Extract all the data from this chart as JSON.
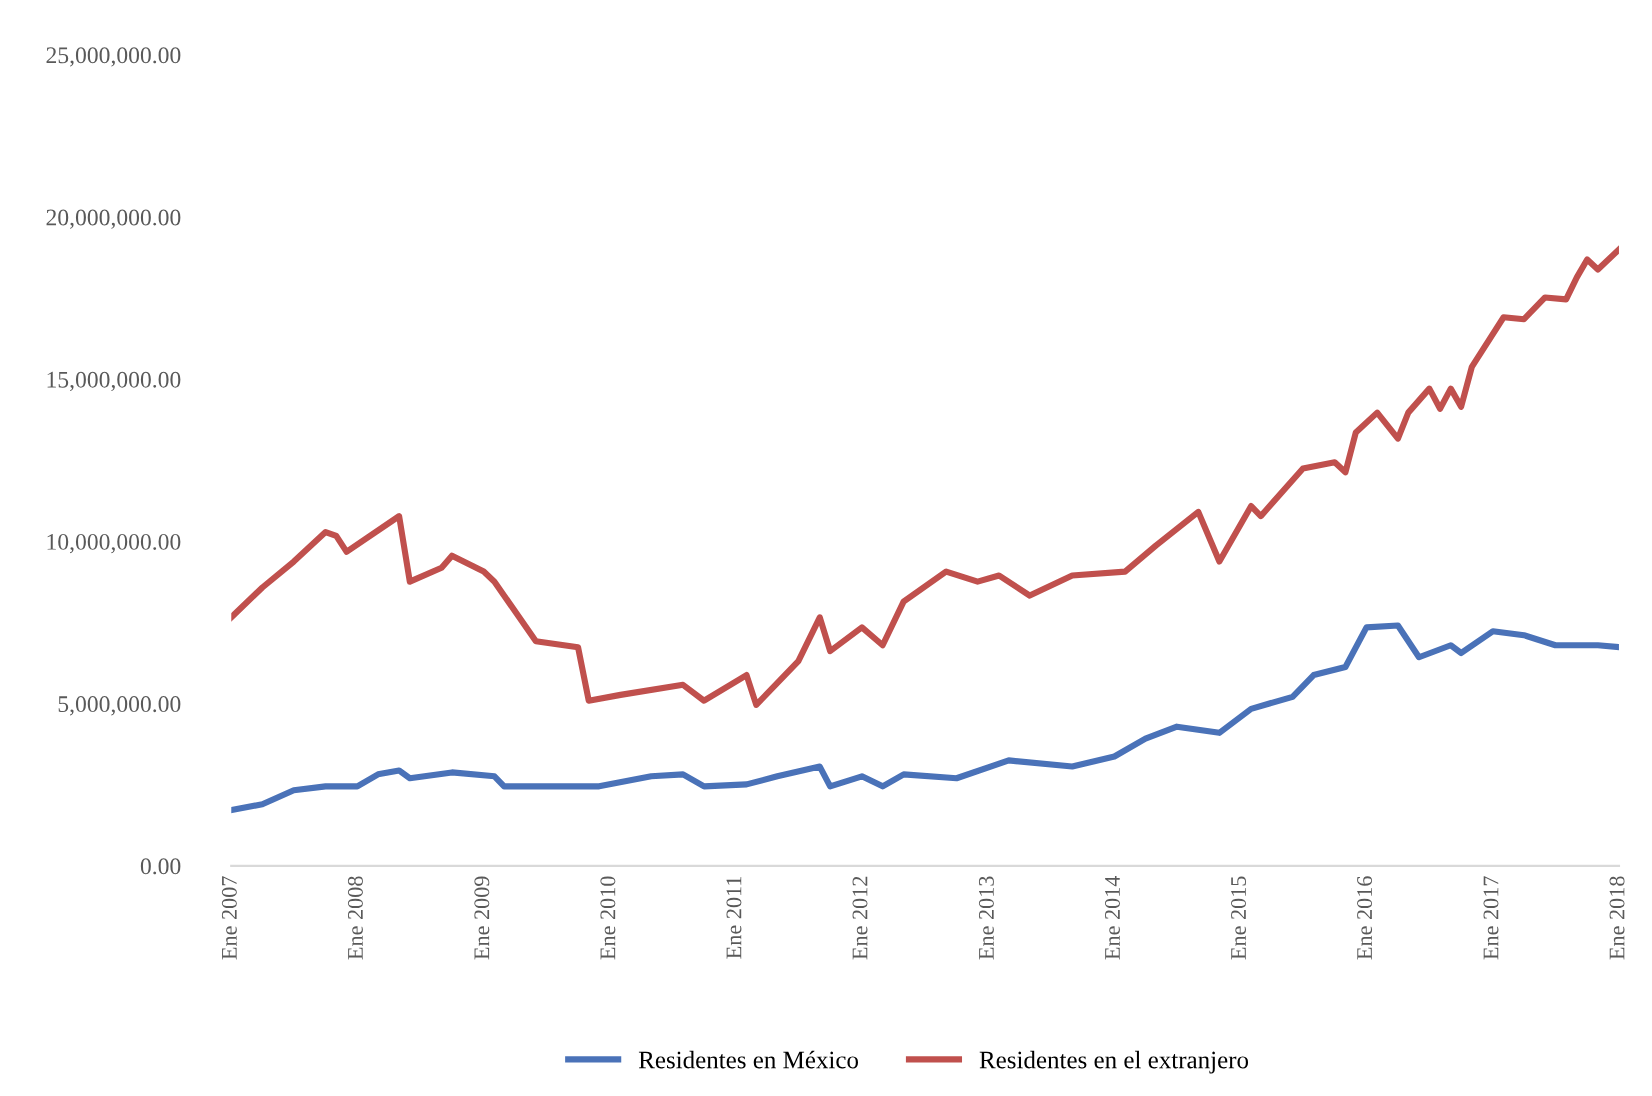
{
  "chart_data": {
    "type": "line",
    "series": [
      {
        "name": "Residentes en México",
        "color": "#4a72b8",
        "x": [
          "2007-01",
          "2007-04",
          "2007-07",
          "2007-10",
          "2008-01",
          "2008-03",
          "2008-05",
          "2008-06",
          "2008-10",
          "2009-02",
          "2009-03",
          "2009-08",
          "2009-12",
          "2010-05",
          "2010-08",
          "2010-10",
          "2011-02",
          "2011-05",
          "2011-09",
          "2011-10",
          "2012-01",
          "2012-03",
          "2012-05",
          "2012-10",
          "2013-03",
          "2013-09",
          "2014-01",
          "2014-04",
          "2014-07",
          "2014-11",
          "2015-02",
          "2015-06",
          "2015-08",
          "2015-11",
          "2016-01",
          "2016-04",
          "2016-06",
          "2016-09",
          "2016-10",
          "2017-01",
          "2017-04",
          "2017-07",
          "2017-11",
          "2018-01"
        ],
        "values": [
          1720000,
          1900000,
          2330000,
          2450000,
          2450000,
          2820000,
          2940000,
          2700000,
          2880000,
          2760000,
          2450000,
          2450000,
          2450000,
          2760000,
          2820000,
          2450000,
          2510000,
          2760000,
          3060000,
          2450000,
          2760000,
          2450000,
          2820000,
          2700000,
          3250000,
          3060000,
          3370000,
          3920000,
          4290000,
          4100000,
          4840000,
          5210000,
          5880000,
          6130000,
          7350000,
          7410000,
          6430000,
          6800000,
          6560000,
          7230000,
          7110000,
          6800000,
          6800000,
          6740000
        ]
      },
      {
        "name": "Residentes en el extranjero",
        "color": "#c0504d",
        "x": [
          "2007-01",
          "2007-04",
          "2007-07",
          "2007-10",
          "2007-11",
          "2007-12",
          "2008-05",
          "2008-06",
          "2008-09",
          "2008-10",
          "2009-01",
          "2009-02",
          "2009-06",
          "2009-10",
          "2009-11",
          "2010-02",
          "2010-08",
          "2010-10",
          "2011-02",
          "2011-03",
          "2011-07",
          "2011-09",
          "2011-10",
          "2012-01",
          "2012-03",
          "2012-05",
          "2012-09",
          "2012-12",
          "2013-02",
          "2013-05",
          "2013-09",
          "2014-02",
          "2014-05",
          "2014-09",
          "2014-11",
          "2015-02",
          "2015-03",
          "2015-07",
          "2015-10",
          "2015-11",
          "2015-12",
          "2016-02",
          "2016-04",
          "2016-05",
          "2016-07",
          "2016-08",
          "2016-09",
          "2016-10",
          "2016-11",
          "2017-02",
          "2017-04",
          "2017-06",
          "2017-08",
          "2017-09",
          "2017-10",
          "2017-11",
          "2018-01"
        ],
        "values": [
          7660000,
          8580000,
          9380000,
          10290000,
          10170000,
          9680000,
          10780000,
          8760000,
          9190000,
          9560000,
          9070000,
          8760000,
          6920000,
          6740000,
          5090000,
          5270000,
          5580000,
          5090000,
          5880000,
          4960000,
          6310000,
          7660000,
          6620000,
          7350000,
          6800000,
          8150000,
          9070000,
          8760000,
          8950000,
          8330000,
          8950000,
          9070000,
          9870000,
          10910000,
          9380000,
          11090000,
          10780000,
          12250000,
          12440000,
          12130000,
          13360000,
          13970000,
          13170000,
          13970000,
          14710000,
          14090000,
          14710000,
          14150000,
          15380000,
          16910000,
          16850000,
          17520000,
          17460000,
          18140000,
          18690000,
          18380000,
          19000000
        ]
      }
    ],
    "xlim": [
      "2007-01",
      "2018-01"
    ],
    "xticks": [
      {
        "value": "2007-01",
        "label": "Ene 2007"
      },
      {
        "value": "2008-01",
        "label": "Ene 2008"
      },
      {
        "value": "2009-01",
        "label": "Ene 2009"
      },
      {
        "value": "2010-01",
        "label": "Ene 2010"
      },
      {
        "value": "2011-01",
        "label": "Ene 2011"
      },
      {
        "value": "2012-01",
        "label": "Ene 2012"
      },
      {
        "value": "2013-01",
        "label": "Ene 2013"
      },
      {
        "value": "2014-01",
        "label": "Ene 2014"
      },
      {
        "value": "2015-01",
        "label": "Ene 2015"
      },
      {
        "value": "2016-01",
        "label": "Ene 2016"
      },
      {
        "value": "2017-01",
        "label": "Ene 2017"
      },
      {
        "value": "2018-01",
        "label": "Ene 2018"
      }
    ],
    "ylim": [
      0,
      25000000
    ],
    "yticks": [
      {
        "value": 0,
        "label": "0.00"
      },
      {
        "value": 5000000,
        "label": "5,000,000.00"
      },
      {
        "value": 10000000,
        "label": "10,000,000.00"
      },
      {
        "value": 15000000,
        "label": "15,000,000.00"
      },
      {
        "value": 20000000,
        "label": "20,000,000.00"
      },
      {
        "value": 25000000,
        "label": "25,000,000.00"
      }
    ],
    "grid": false,
    "legend": "bottom",
    "line_style": "solid"
  }
}
